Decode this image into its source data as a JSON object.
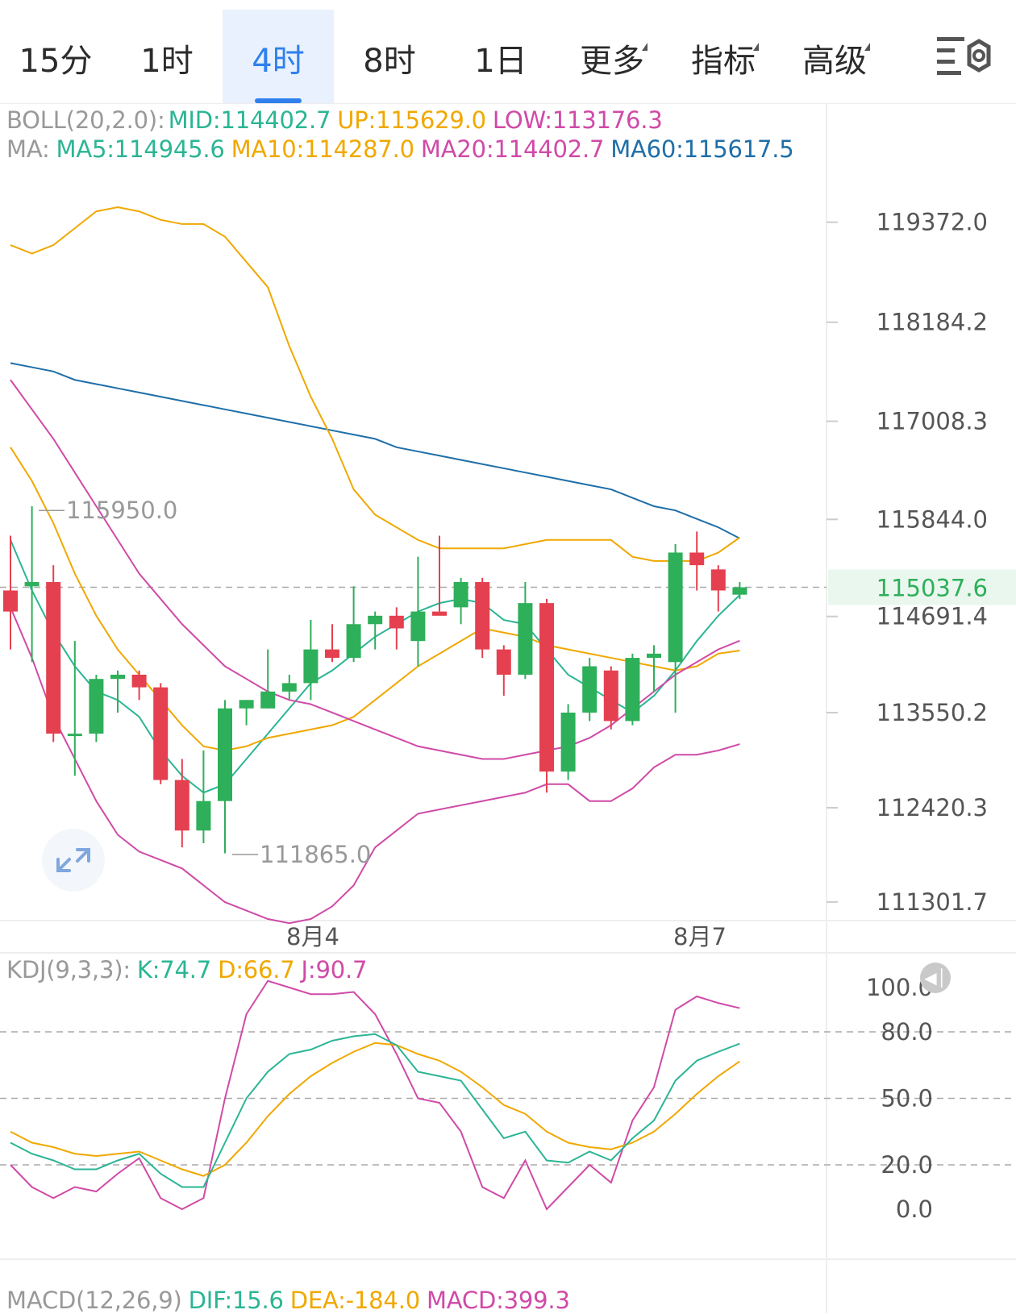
{
  "tabs": [
    {
      "label": "15分",
      "active": false,
      "dropdown": false
    },
    {
      "label": "1时",
      "active": false,
      "dropdown": false
    },
    {
      "label": "4时",
      "active": true,
      "dropdown": false
    },
    {
      "label": "8时",
      "active": false,
      "dropdown": false
    },
    {
      "label": "1日",
      "active": false,
      "dropdown": false
    },
    {
      "label": "更多",
      "active": false,
      "dropdown": true
    },
    {
      "label": "指标",
      "active": false,
      "dropdown": true
    },
    {
      "label": "高级",
      "active": false,
      "dropdown": true
    }
  ],
  "settings_icon": "chart-settings-icon",
  "legends": {
    "boll": {
      "prefix": "BOLL(20,2.0):",
      "mid": "MID:114402.7",
      "up": "UP:115629.0",
      "low": "LOW:113176.3"
    },
    "ma": {
      "prefix": "MA:",
      "ma5": "MA5:114945.6",
      "ma10": "MA10:114287.0",
      "ma20": "MA20:114402.7",
      "ma60": "MA60:115617.5"
    },
    "kdj": {
      "prefix": "KDJ(9,3,3):",
      "k": "K:74.7",
      "d": "D:66.7",
      "j": "J:90.7"
    },
    "macd": {
      "prefix": "MACD(12,26,9)",
      "dif": "DIF:15.6",
      "dea": "DEA:-184.0",
      "macd": "MACD:399.3"
    }
  },
  "colors": {
    "up_candle": "#e5404f",
    "down_candle": "#2eaf5a",
    "mid": "#2bb594",
    "ma10": "#f0a800",
    "boll_band": "#d04aa7",
    "ma60": "#1f6fa8",
    "grey_text": "#999999"
  },
  "price_axis": {
    "ticks": [
      "119372.0",
      "118184.2",
      "117008.3",
      "115844.0",
      "114691.4",
      "113550.2",
      "112420.3",
      "111301.7"
    ],
    "current_price": "115037.6"
  },
  "annotations": {
    "high": "115950.0",
    "low": "111865.0"
  },
  "time_axis": [
    "8月4",
    "8月7"
  ],
  "kdj_axis": [
    "100.0",
    "80.0",
    "50.0",
    "20.0",
    "0.0"
  ],
  "chart_data": {
    "type": "candlestick",
    "interval": "4时",
    "ylim": [
      111100,
      120000
    ],
    "candles": [
      {
        "o": 115000,
        "h": 115650,
        "l": 114300,
        "c": 114750
      },
      {
        "o": 115050,
        "h": 116000,
        "l": 114150,
        "c": 115100
      },
      {
        "o": 115100,
        "h": 115300,
        "l": 113200,
        "c": 113300
      },
      {
        "o": 113300,
        "h": 114400,
        "l": 112800,
        "c": 113300
      },
      {
        "o": 113300,
        "h": 114000,
        "l": 113200,
        "c": 113950
      },
      {
        "o": 113950,
        "h": 114050,
        "l": 113550,
        "c": 114000
      },
      {
        "o": 114000,
        "h": 114050,
        "l": 113700,
        "c": 113850
      },
      {
        "o": 113850,
        "h": 113900,
        "l": 112700,
        "c": 112750
      },
      {
        "o": 112750,
        "h": 113000,
        "l": 111950,
        "c": 112150
      },
      {
        "o": 112150,
        "h": 113100,
        "l": 112000,
        "c": 112500
      },
      {
        "o": 112500,
        "h": 113700,
        "l": 111880,
        "c": 113600
      },
      {
        "o": 113600,
        "h": 113700,
        "l": 113400,
        "c": 113700
      },
      {
        "o": 113600,
        "h": 114300,
        "l": 113600,
        "c": 113800
      },
      {
        "o": 113800,
        "h": 114000,
        "l": 113700,
        "c": 113900
      },
      {
        "o": 113900,
        "h": 114650,
        "l": 113700,
        "c": 114300
      },
      {
        "o": 114300,
        "h": 114600,
        "l": 114150,
        "c": 114200
      },
      {
        "o": 114200,
        "h": 115050,
        "l": 114150,
        "c": 114600
      },
      {
        "o": 114600,
        "h": 114750,
        "l": 114300,
        "c": 114700
      },
      {
        "o": 114700,
        "h": 114800,
        "l": 114300,
        "c": 114550
      },
      {
        "o": 114400,
        "h": 115400,
        "l": 114100,
        "c": 114750
      },
      {
        "o": 114750,
        "h": 115650,
        "l": 114750,
        "c": 114700
      },
      {
        "o": 114800,
        "h": 115150,
        "l": 114600,
        "c": 115100
      },
      {
        "o": 115100,
        "h": 115150,
        "l": 114200,
        "c": 114300
      },
      {
        "o": 114300,
        "h": 114350,
        "l": 113750,
        "c": 114000
      },
      {
        "o": 114000,
        "h": 115100,
        "l": 113950,
        "c": 114850
      },
      {
        "o": 114850,
        "h": 114900,
        "l": 112600,
        "c": 112850
      },
      {
        "o": 112850,
        "h": 113650,
        "l": 112750,
        "c": 113550
      },
      {
        "o": 113550,
        "h": 114200,
        "l": 113450,
        "c": 114100
      },
      {
        "o": 114050,
        "h": 114100,
        "l": 113350,
        "c": 113450
      },
      {
        "o": 113450,
        "h": 114250,
        "l": 113400,
        "c": 114200
      },
      {
        "o": 114200,
        "h": 114350,
        "l": 113800,
        "c": 114250
      },
      {
        "o": 114150,
        "h": 115550,
        "l": 113550,
        "c": 115450
      },
      {
        "o": 115450,
        "h": 115700,
        "l": 115000,
        "c": 115300
      },
      {
        "o": 115250,
        "h": 115300,
        "l": 114750,
        "c": 115000
      },
      {
        "o": 114950,
        "h": 115100,
        "l": 114900,
        "c": 115037.6
      }
    ],
    "series": [
      {
        "name": "MA5",
        "color": "#2bb594",
        "values": [
          115600,
          115000,
          114500,
          114100,
          113800,
          113700,
          113500,
          113100,
          112800,
          112600,
          112700,
          113000,
          113300,
          113600,
          113900,
          114050,
          114250,
          114450,
          114600,
          114750,
          114850,
          114900,
          114850,
          114650,
          114600,
          114300,
          114000,
          113850,
          113700,
          113550,
          113750,
          114050,
          114400,
          114700,
          114946
        ]
      },
      {
        "name": "MA10",
        "color": "#f0a800",
        "values": [
          116700,
          116300,
          115800,
          115200,
          114700,
          114300,
          114000,
          113700,
          113400,
          113150,
          113100,
          113150,
          113250,
          113300,
          113350,
          113400,
          113500,
          113700,
          113900,
          114100,
          114250,
          114400,
          114550,
          114500,
          114450,
          114350,
          114300,
          114250,
          114200,
          114150,
          114100,
          114050,
          114100,
          114250,
          114287
        ]
      },
      {
        "name": "MA20",
        "color": "#d04aa7",
        "values": [
          117500,
          117150,
          116800,
          116400,
          116000,
          115600,
          115200,
          114900,
          114600,
          114350,
          114100,
          113950,
          113800,
          113700,
          113650,
          113550,
          113450,
          113350,
          113250,
          113150,
          113100,
          113050,
          113000,
          113000,
          113050,
          113100,
          113150,
          113250,
          113400,
          113600,
          113800,
          114000,
          114150,
          114300,
          114403
        ]
      },
      {
        "name": "MA60",
        "color": "#1f6fa8",
        "values": [
          117700,
          117650,
          117600,
          117500,
          117450,
          117400,
          117350,
          117300,
          117250,
          117200,
          117150,
          117100,
          117050,
          117000,
          116950,
          116900,
          116850,
          116800,
          116700,
          116650,
          116600,
          116550,
          116500,
          116450,
          116400,
          116350,
          116300,
          116250,
          116200,
          116100,
          116000,
          115950,
          115850,
          115750,
          115618
        ]
      },
      {
        "name": "UP",
        "color": "#f0a800",
        "values": [
          119100,
          119000,
          119100,
          119300,
          119500,
          119550,
          119500,
          119400,
          119350,
          119350,
          119200,
          118900,
          118600,
          117900,
          117300,
          116800,
          116200,
          115900,
          115750,
          115600,
          115500,
          115500,
          115500,
          115500,
          115550,
          115600,
          115600,
          115600,
          115600,
          115400,
          115350,
          115350,
          115350,
          115450,
          115629
        ]
      },
      {
        "name": "LOW",
        "color": "#d04aa7",
        "values": [
          114800,
          114200,
          113500,
          113000,
          112500,
          112100,
          111900,
          111800,
          111700,
          111500,
          111300,
          111200,
          111100,
          111050,
          111100,
          111250,
          111500,
          111950,
          112150,
          112350,
          112400,
          112450,
          112500,
          112550,
          112600,
          112700,
          112700,
          112500,
          112500,
          112650,
          112900,
          113050,
          113050,
          113100,
          113176
        ]
      }
    ],
    "kdj": {
      "ylim": [
        -5,
        107
      ],
      "K": [
        30,
        25,
        22,
        18,
        18,
        22,
        25,
        16,
        10,
        10,
        30,
        50,
        62,
        70,
        72,
        76,
        78,
        79,
        74,
        62,
        60,
        58,
        45,
        32,
        35,
        22,
        21,
        26,
        22,
        32,
        40,
        58,
        67,
        71,
        74.7
      ],
      "D": [
        35,
        30,
        28,
        25,
        24,
        25,
        26,
        22,
        18,
        15,
        20,
        30,
        42,
        52,
        60,
        66,
        71,
        75,
        74,
        70,
        67,
        62,
        55,
        47,
        43,
        35,
        30,
        28,
        27,
        30,
        35,
        43,
        52,
        60,
        66.7
      ],
      "J": [
        20,
        10,
        5,
        10,
        8,
        16,
        23,
        5,
        0,
        5,
        50,
        88,
        103,
        100,
        97,
        97,
        98,
        88,
        70,
        50,
        48,
        35,
        10,
        5,
        22,
        0,
        10,
        20,
        12,
        40,
        55,
        90,
        96,
        93,
        90.7
      ]
    }
  }
}
